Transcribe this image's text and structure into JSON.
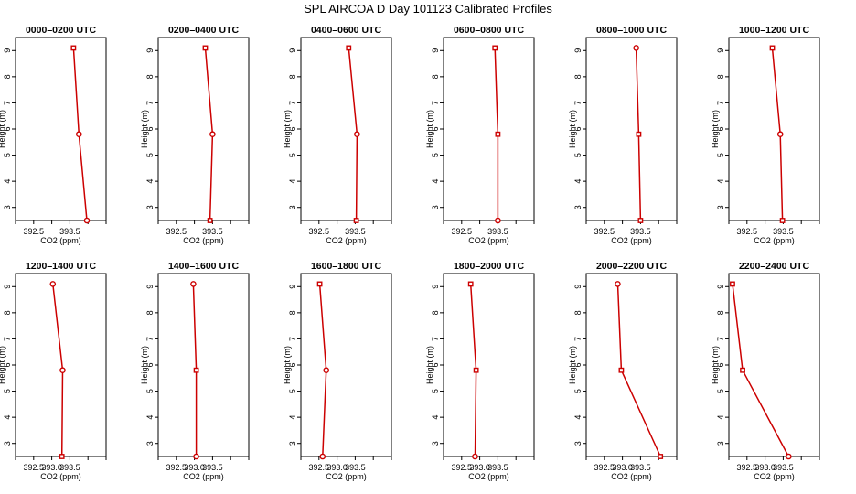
{
  "title": "SPL AIRCOA D  Day 101123  Calibrated Profiles",
  "colors": {
    "series": "#cc0000",
    "axis": "#000000",
    "background": "#ffffff"
  },
  "chart_data": [
    {
      "type": "line",
      "title": "0000–0200 UTC",
      "xlabel": "CO2 (ppm)",
      "ylabel": "Height (m)",
      "xlim": [
        392.0,
        394.5
      ],
      "ylim": [
        2.5,
        9.5
      ],
      "x_ticks": [
        "392.5",
        "393.5"
      ],
      "y_ticks": [
        "3",
        "4",
        "5",
        "6",
        "7",
        "8",
        "9"
      ],
      "x": [
        393.6,
        393.75,
        393.97
      ],
      "y": [
        9.1,
        5.8,
        2.5
      ],
      "markers": [
        "square",
        "circle",
        "circle"
      ]
    },
    {
      "type": "line",
      "title": "0200–0400 UTC",
      "xlabel": "CO2 (ppm)",
      "ylabel": "Height (m)",
      "xlim": [
        392.0,
        394.5
      ],
      "ylim": [
        2.5,
        9.5
      ],
      "x_ticks": [
        "392.5",
        "393.5"
      ],
      "y_ticks": [
        "3",
        "4",
        "5",
        "6",
        "7",
        "8",
        "9"
      ],
      "x": [
        393.3,
        393.5,
        393.43
      ],
      "y": [
        9.1,
        5.8,
        2.5
      ],
      "markers": [
        "square",
        "circle",
        "square"
      ]
    },
    {
      "type": "line",
      "title": "0400–0600 UTC",
      "xlabel": "CO2 (ppm)",
      "ylabel": "Height (m)",
      "xlim": [
        392.0,
        394.5
      ],
      "ylim": [
        2.5,
        9.5
      ],
      "x_ticks": [
        "392.5",
        "393.5"
      ],
      "y_ticks": [
        "3",
        "4",
        "5",
        "6",
        "7",
        "8",
        "9"
      ],
      "x": [
        393.32,
        393.55,
        393.53
      ],
      "y": [
        9.1,
        5.8,
        2.5
      ],
      "markers": [
        "square",
        "circle",
        "square"
      ]
    },
    {
      "type": "line",
      "title": "0600–0800 UTC",
      "xlabel": "CO2 (ppm)",
      "ylabel": "Height (m)",
      "xlim": [
        392.0,
        394.5
      ],
      "ylim": [
        2.5,
        9.5
      ],
      "x_ticks": [
        "392.5",
        "393.5"
      ],
      "y_ticks": [
        "3",
        "4",
        "5",
        "6",
        "7",
        "8",
        "9"
      ],
      "x": [
        393.42,
        393.5,
        393.5
      ],
      "y": [
        9.1,
        5.8,
        2.5
      ],
      "markers": [
        "square",
        "square",
        "circle"
      ]
    },
    {
      "type": "line",
      "title": "0800–1000 UTC",
      "xlabel": "CO2 (ppm)",
      "ylabel": "Height (m)",
      "xlim": [
        392.0,
        394.5
      ],
      "ylim": [
        2.5,
        9.5
      ],
      "x_ticks": [
        "392.5",
        "393.5"
      ],
      "y_ticks": [
        "3",
        "4",
        "5",
        "6",
        "7",
        "8",
        "9"
      ],
      "x": [
        393.38,
        393.45,
        393.5
      ],
      "y": [
        9.1,
        5.8,
        2.5
      ],
      "markers": [
        "circle",
        "square",
        "square"
      ]
    },
    {
      "type": "line",
      "title": "1000–1200 UTC",
      "xlabel": "CO2 (ppm)",
      "ylabel": "Height (m)",
      "xlim": [
        392.0,
        394.5
      ],
      "ylim": [
        2.5,
        9.5
      ],
      "x_ticks": [
        "392.5",
        "393.5"
      ],
      "y_ticks": [
        "3",
        "4",
        "5",
        "6",
        "7",
        "8",
        "9"
      ],
      "x": [
        393.2,
        393.42,
        393.48
      ],
      "y": [
        9.1,
        5.8,
        2.5
      ],
      "markers": [
        "square",
        "circle",
        "square"
      ]
    },
    {
      "type": "line",
      "title": "1200–1400 UTC",
      "xlabel": "CO2 (ppm)",
      "ylabel": "Height (m)",
      "xlim": [
        392.0,
        394.5
      ],
      "ylim": [
        2.5,
        9.5
      ],
      "x_ticks": [
        "392.5",
        "393.0",
        "393.5"
      ],
      "y_ticks": [
        "3",
        "4",
        "5",
        "6",
        "7",
        "8",
        "9"
      ],
      "x": [
        393.03,
        393.3,
        393.28
      ],
      "y": [
        9.1,
        5.8,
        2.5
      ],
      "markers": [
        "circle",
        "circle",
        "square"
      ]
    },
    {
      "type": "line",
      "title": "1400–1600 UTC",
      "xlabel": "CO2 (ppm)",
      "ylabel": "Height (m)",
      "xlim": [
        392.0,
        394.5
      ],
      "ylim": [
        2.5,
        9.5
      ],
      "x_ticks": [
        "392.5",
        "393.0",
        "393.5"
      ],
      "y_ticks": [
        "3",
        "4",
        "5",
        "6",
        "7",
        "8",
        "9"
      ],
      "x": [
        392.97,
        393.05,
        393.05
      ],
      "y": [
        9.1,
        5.8,
        2.5
      ],
      "markers": [
        "circle",
        "square",
        "circle"
      ]
    },
    {
      "type": "line",
      "title": "1600–1800 UTC",
      "xlabel": "CO2 (ppm)",
      "ylabel": "Height (m)",
      "xlim": [
        392.0,
        394.5
      ],
      "ylim": [
        2.5,
        9.5
      ],
      "x_ticks": [
        "392.5",
        "393.0",
        "393.5"
      ],
      "y_ticks": [
        "3",
        "4",
        "5",
        "6",
        "7",
        "8",
        "9"
      ],
      "x": [
        392.52,
        392.7,
        392.6
      ],
      "y": [
        9.1,
        5.8,
        2.5
      ],
      "markers": [
        "square",
        "circle",
        "circle"
      ]
    },
    {
      "type": "line",
      "title": "1800–2000 UTC",
      "xlabel": "CO2 (ppm)",
      "ylabel": "Height (m)",
      "xlim": [
        392.0,
        394.5
      ],
      "ylim": [
        2.5,
        9.5
      ],
      "x_ticks": [
        "392.5",
        "393.0",
        "393.5"
      ],
      "y_ticks": [
        "3",
        "4",
        "5",
        "6",
        "7",
        "8",
        "9"
      ],
      "x": [
        392.75,
        392.9,
        392.87
      ],
      "y": [
        9.1,
        5.8,
        2.5
      ],
      "markers": [
        "square",
        "square",
        "circle"
      ]
    },
    {
      "type": "line",
      "title": "2000–2200 UTC",
      "xlabel": "CO2 (ppm)",
      "ylabel": "Height (m)",
      "xlim": [
        392.0,
        394.5
      ],
      "ylim": [
        2.5,
        9.5
      ],
      "x_ticks": [
        "392.5",
        "393.0",
        "393.5"
      ],
      "y_ticks": [
        "3",
        "4",
        "5",
        "6",
        "7",
        "8",
        "9"
      ],
      "x": [
        392.87,
        392.97,
        394.05
      ],
      "y": [
        9.1,
        5.8,
        2.5
      ],
      "markers": [
        "circle",
        "square",
        "square"
      ]
    },
    {
      "type": "line",
      "title": "2200–2400 UTC",
      "xlabel": "CO2 (ppm)",
      "ylabel": "Height (m)",
      "xlim": [
        392.0,
        394.5
      ],
      "ylim": [
        2.5,
        9.5
      ],
      "x_ticks": [
        "392.5",
        "393.0",
        "393.5"
      ],
      "y_ticks": [
        "3",
        "4",
        "5",
        "6",
        "7",
        "8",
        "9"
      ],
      "x": [
        392.1,
        392.38,
        393.65
      ],
      "y": [
        9.1,
        5.8,
        2.5
      ],
      "markers": [
        "square",
        "square",
        "circle"
      ]
    }
  ]
}
